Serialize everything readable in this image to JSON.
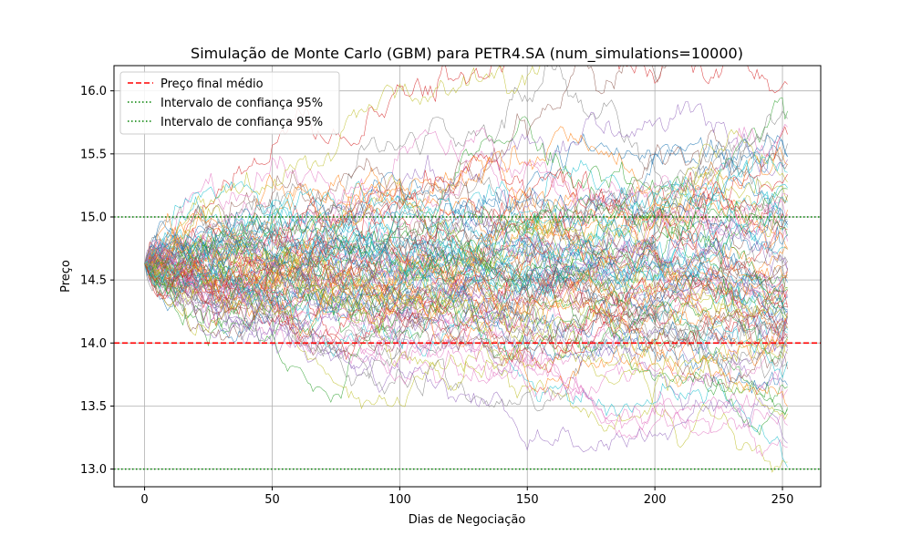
{
  "chart_data": {
    "type": "line",
    "title": "Simulação de Monte Carlo (GBM) para PETR4.SA (num_simulations=10000)",
    "xlabel": "Dias de Negociação",
    "ylabel": "Preço",
    "xlim": [
      -12,
      265
    ],
    "ylim": [
      12.86,
      16.2
    ],
    "xticks": [
      0,
      50,
      100,
      150,
      200,
      250
    ],
    "yticks": [
      13.0,
      13.5,
      14.0,
      14.5,
      15.0,
      15.5,
      16.0
    ],
    "xtick_labels": [
      "0",
      "50",
      "100",
      "150",
      "200",
      "250"
    ],
    "ytick_labels": [
      "13.0",
      "13.5",
      "14.0",
      "14.5",
      "15.0",
      "15.5",
      "16.0"
    ],
    "grid": true,
    "legend_position": "top-left",
    "simulation": {
      "start_price": 14.63,
      "days": 252,
      "paths_drawn": 100,
      "palette": [
        "#1f77b4",
        "#ff7f0e",
        "#2ca02c",
        "#d62728",
        "#9467bd",
        "#8c564b",
        "#e377c2",
        "#7f7f7f",
        "#bcbd22",
        "#17becf"
      ]
    },
    "reference_lines": [
      {
        "name": "Preço final médio",
        "value": 14.0,
        "color": "#ff0000",
        "style": "dashed"
      },
      {
        "name": "Intervalo de confiança 95%",
        "value": 15.0,
        "color": "#008000",
        "style": "dotted"
      },
      {
        "name": "Intervalo de confiança 95%",
        "value": 13.0,
        "color": "#008000",
        "style": "dotted"
      }
    ]
  }
}
